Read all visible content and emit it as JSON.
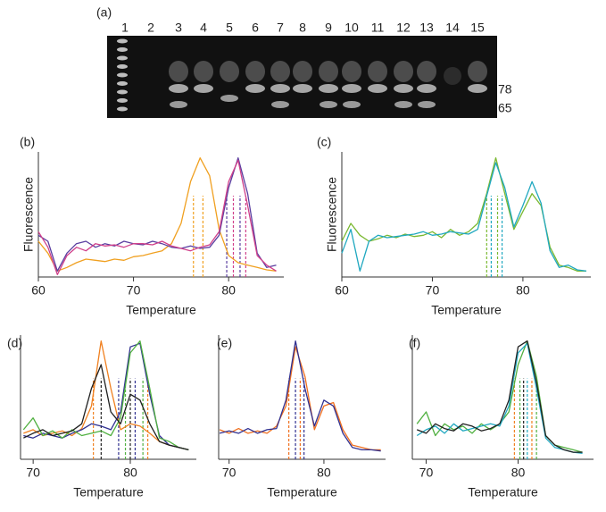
{
  "gel": {
    "label": "(a)",
    "lanes": [
      "1",
      "2",
      "3",
      "4",
      "5",
      "6",
      "7",
      "8",
      "9",
      "10",
      "11",
      "12",
      "13",
      "14",
      "15"
    ],
    "band_labels": [
      "78",
      "65"
    ]
  },
  "chart_data": [
    {
      "type": "line",
      "label": "(b)",
      "xlabel": "Temperature",
      "ylabel": "Fluorescence",
      "x": [
        60,
        61,
        62,
        63,
        64,
        65,
        66,
        67,
        68,
        69,
        70,
        71,
        72,
        73,
        74,
        75,
        76,
        77,
        78,
        79,
        80,
        81,
        82,
        83,
        84,
        85
      ],
      "xlim": [
        60,
        85.8
      ],
      "xticks": [
        60,
        70,
        80
      ],
      "ylim": [
        0,
        105
      ],
      "series": [
        {
          "color": "#f0a020",
          "values": [
            30,
            20,
            5,
            8,
            12,
            15,
            14,
            13,
            15,
            14,
            17,
            18,
            20,
            22,
            28,
            45,
            80,
            100,
            85,
            40,
            18,
            12,
            10,
            8,
            6,
            5
          ]
        },
        {
          "color": "#5a3ea0",
          "values": [
            35,
            30,
            5,
            20,
            28,
            30,
            25,
            28,
            26,
            30,
            28,
            27,
            30,
            28,
            25,
            24,
            26,
            24,
            25,
            35,
            75,
            100,
            70,
            20,
            8,
            10
          ]
        },
        {
          "color": "#d0408a",
          "values": [
            38,
            25,
            2,
            18,
            25,
            22,
            28,
            26,
            27,
            25,
            28,
            28,
            27,
            30,
            26,
            24,
            22,
            25,
            27,
            38,
            80,
            98,
            60,
            18,
            10,
            5
          ]
        }
      ],
      "markers": [
        {
          "x": 76.3,
          "color": "#f0a020"
        },
        {
          "x": 77.3,
          "color": "#f0a020"
        },
        {
          "x": 79.8,
          "color": "#5a3ea0"
        },
        {
          "x": 80.5,
          "color": "#d0408a"
        },
        {
          "x": 81.2,
          "color": "#5a3ea0"
        },
        {
          "x": 81.8,
          "color": "#d0408a"
        }
      ]
    },
    {
      "type": "line",
      "label": "(c)",
      "xlabel": "Temperature",
      "ylabel": "Fluorescence",
      "x": [
        60,
        61,
        62,
        63,
        64,
        65,
        66,
        67,
        68,
        69,
        70,
        71,
        72,
        73,
        74,
        75,
        76,
        77,
        78,
        79,
        80,
        81,
        82,
        83,
        84,
        85,
        86,
        87
      ],
      "xlim": [
        60,
        87.5
      ],
      "xticks": [
        60,
        70,
        80
      ],
      "ylim": [
        0,
        105
      ],
      "series": [
        {
          "color": "#7ab830",
          "values": [
            30,
            45,
            35,
            30,
            32,
            35,
            33,
            36,
            34,
            35,
            38,
            33,
            40,
            35,
            38,
            45,
            70,
            100,
            70,
            40,
            55,
            70,
            60,
            25,
            10,
            8,
            5,
            5
          ]
        },
        {
          "color": "#20a8c0",
          "values": [
            20,
            40,
            5,
            30,
            35,
            33,
            34,
            35,
            36,
            38,
            35,
            36,
            38,
            37,
            36,
            40,
            68,
            96,
            75,
            42,
            60,
            80,
            62,
            22,
            8,
            10,
            6,
            5
          ]
        }
      ],
      "markers": [
        {
          "x": 76.0,
          "color": "#7ab830"
        },
        {
          "x": 76.5,
          "color": "#20a8c0"
        },
        {
          "x": 77.2,
          "color": "#7ab830"
        },
        {
          "x": 77.7,
          "color": "#20a8c0"
        }
      ]
    },
    {
      "type": "line",
      "label": "(d)",
      "xlabel": "Temperature",
      "x": [
        69,
        70,
        71,
        72,
        73,
        74,
        75,
        76,
        77,
        78,
        79,
        80,
        81,
        82,
        83,
        84,
        85,
        86
      ],
      "xlim": [
        68.7,
        86.8
      ],
      "xticks": [
        70,
        80
      ],
      "ylim": [
        0,
        105
      ],
      "series": [
        {
          "color": "#f08020",
          "values": [
            22,
            25,
            20,
            22,
            24,
            20,
            26,
            45,
            100,
            60,
            25,
            30,
            28,
            22,
            15,
            12,
            10,
            8
          ]
        },
        {
          "color": "#303090",
          "values": [
            20,
            18,
            22,
            20,
            18,
            22,
            25,
            30,
            28,
            25,
            40,
            95,
            98,
            55,
            20,
            12,
            10,
            8
          ]
        },
        {
          "color": "#50b040",
          "values": [
            25,
            35,
            20,
            24,
            18,
            25,
            20,
            22,
            24,
            20,
            35,
            90,
            100,
            60,
            18,
            15,
            10,
            8
          ]
        },
        {
          "color": "#202020",
          "values": [
            18,
            22,
            25,
            20,
            22,
            24,
            30,
            60,
            80,
            40,
            30,
            55,
            50,
            30,
            15,
            12,
            10,
            8
          ]
        }
      ],
      "markers": [
        {
          "x": 76.2,
          "color": "#f08020"
        },
        {
          "x": 77.0,
          "color": "#202020"
        },
        {
          "x": 78.8,
          "color": "#303090"
        },
        {
          "x": 79.5,
          "color": "#50b040"
        },
        {
          "x": 80.0,
          "color": "#202020"
        },
        {
          "x": 80.5,
          "color": "#303090"
        },
        {
          "x": 81.3,
          "color": "#50b040"
        },
        {
          "x": 81.8,
          "color": "#f08020"
        }
      ]
    },
    {
      "type": "line",
      "label": "(e)",
      "xlabel": "Temperature",
      "x": [
        69,
        70,
        71,
        72,
        73,
        74,
        75,
        76,
        77,
        78,
        79,
        80,
        81,
        82,
        83,
        84,
        85,
        86
      ],
      "xlim": [
        68.9,
        86.5
      ],
      "xticks": [
        70,
        80
      ],
      "ylim": [
        0,
        105
      ],
      "series": [
        {
          "color": "#f07020",
          "values": [
            25,
            22,
            26,
            22,
            24,
            22,
            28,
            45,
            95,
            70,
            25,
            45,
            48,
            25,
            12,
            10,
            8,
            8
          ]
        },
        {
          "color": "#303090",
          "values": [
            22,
            24,
            22,
            26,
            22,
            25,
            26,
            50,
            100,
            60,
            28,
            50,
            45,
            22,
            10,
            8,
            8,
            7
          ]
        }
      ],
      "markers": [
        {
          "x": 76.3,
          "color": "#f07020"
        },
        {
          "x": 77.0,
          "color": "#303090"
        },
        {
          "x": 77.5,
          "color": "#f07020"
        },
        {
          "x": 77.9,
          "color": "#303090"
        }
      ]
    },
    {
      "type": "line",
      "label": "(f)",
      "xlabel": "Temperature",
      "x": [
        69,
        70,
        71,
        72,
        73,
        74,
        75,
        76,
        77,
        78,
        79,
        80,
        81,
        82,
        83,
        84,
        85,
        86,
        87
      ],
      "xlim": [
        68.5,
        88.2
      ],
      "xticks": [
        70,
        80
      ],
      "ylim": [
        0,
        105
      ],
      "series": [
        {
          "color": "#50b040",
          "values": [
            30,
            40,
            20,
            30,
            25,
            28,
            22,
            30,
            25,
            30,
            40,
            80,
            100,
            70,
            20,
            12,
            10,
            8,
            6
          ]
        },
        {
          "color": "#20a8c0",
          "values": [
            20,
            25,
            28,
            22,
            30,
            24,
            26,
            28,
            30,
            28,
            45,
            90,
            98,
            60,
            18,
            10,
            8,
            6,
            5
          ]
        },
        {
          "color": "#202020",
          "values": [
            25,
            22,
            30,
            26,
            24,
            30,
            28,
            24,
            26,
            30,
            50,
            95,
            100,
            65,
            20,
            12,
            8,
            6,
            6
          ]
        }
      ],
      "markers": [
        {
          "x": 79.6,
          "color": "#f08020"
        },
        {
          "x": 80.2,
          "color": "#50b040"
        },
        {
          "x": 80.6,
          "color": "#202020"
        },
        {
          "x": 81.0,
          "color": "#20a8c0"
        },
        {
          "x": 81.5,
          "color": "#f08020"
        },
        {
          "x": 82.0,
          "color": "#50b040"
        }
      ]
    }
  ]
}
